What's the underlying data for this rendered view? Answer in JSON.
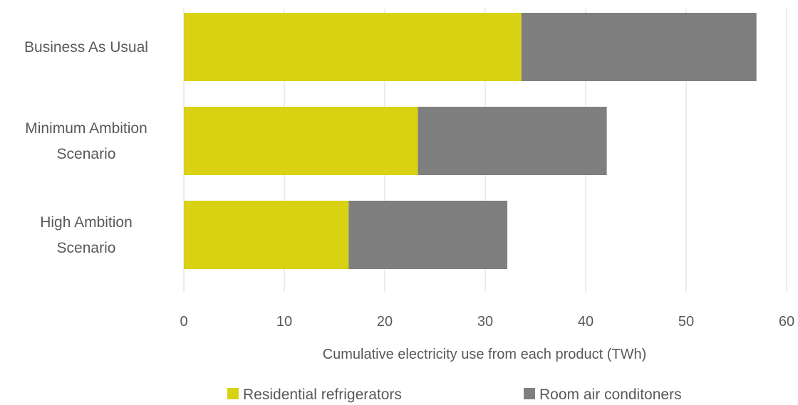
{
  "chart_data": {
    "type": "bar",
    "orientation": "horizontal",
    "stacked": true,
    "title": "",
    "xlabel": "Cumulative electricity use from each product (TWh)",
    "ylabel": "",
    "xlim": [
      0,
      60
    ],
    "xticks": [
      0,
      10,
      20,
      30,
      40,
      50,
      60
    ],
    "grid": "vertical",
    "legend_position": "bottom",
    "categories": [
      [
        "Business As Usual"
      ],
      [
        "Minimum Ambition",
        "Scenario"
      ],
      [
        "High Ambition",
        "Scenario"
      ]
    ],
    "series": [
      {
        "name": "Residential refrigerators",
        "color": "#d9d213",
        "values": [
          33.6,
          23.3,
          16.4
        ]
      },
      {
        "name": "Room air conditoners",
        "color": "#7f7f7f",
        "values": [
          23.4,
          18.8,
          15.8
        ]
      }
    ]
  }
}
